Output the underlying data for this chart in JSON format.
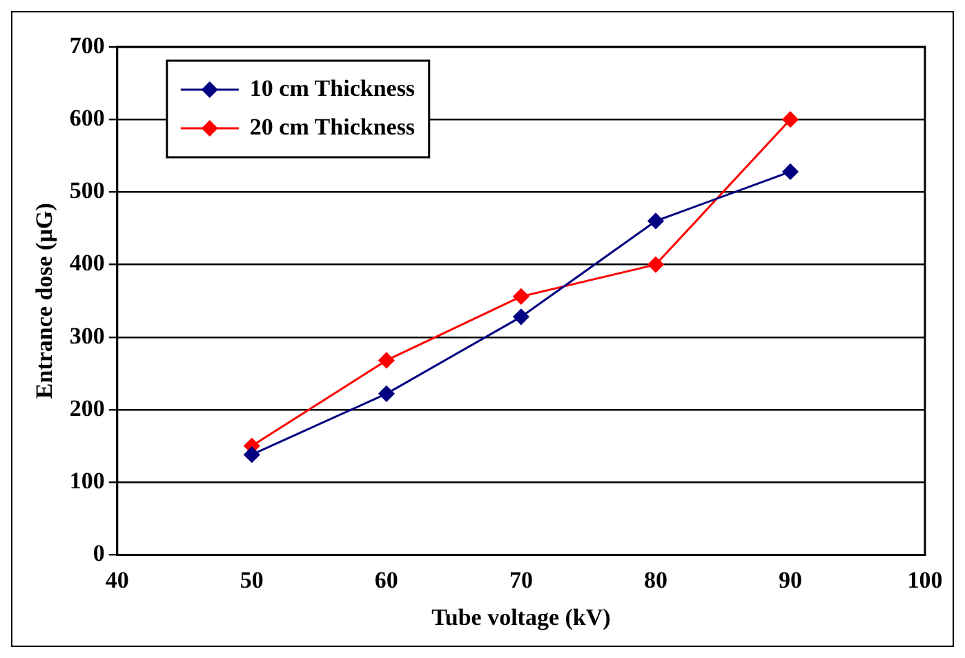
{
  "chart_data": {
    "type": "line",
    "xlabel": "Tube voltage (kV)",
    "ylabel": "Entrance dose (µG)",
    "x": [
      50,
      60,
      70,
      80,
      90
    ],
    "series": [
      {
        "name": "10 cm Thickness",
        "color": "#000080",
        "values": [
          138,
          222,
          328,
          460,
          528
        ]
      },
      {
        "name": "20 cm Thickness",
        "color": "#ff0000",
        "values": [
          150,
          268,
          356,
          400,
          600
        ]
      }
    ],
    "xlim": [
      40,
      100
    ],
    "xticks": [
      40,
      50,
      60,
      70,
      80,
      90,
      100
    ],
    "ylim": [
      0,
      700
    ],
    "yticks": [
      0,
      100,
      200,
      300,
      400,
      500,
      600,
      700
    ],
    "grid": "y",
    "legend": "top left",
    "marker": "diamond",
    "line_style": "solid"
  }
}
